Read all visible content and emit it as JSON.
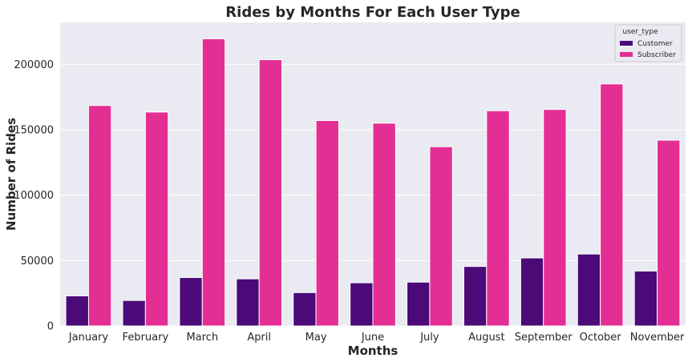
{
  "chart_data": {
    "type": "bar",
    "title": "Rides by Months For Each User Type",
    "xlabel": "Months",
    "ylabel": "Number of Rides",
    "categories": [
      "January",
      "February",
      "March",
      "April",
      "May",
      "June",
      "July",
      "August",
      "September",
      "October",
      "November"
    ],
    "series": [
      {
        "name": "Customer",
        "color": "#4b0a78",
        "values": [
          23000,
          19500,
          37000,
          36000,
          25500,
          33000,
          33500,
          45500,
          52000,
          55000,
          42000
        ]
      },
      {
        "name": "Subscriber",
        "color": "#e32f93",
        "values": [
          168500,
          163500,
          219500,
          203500,
          157000,
          155000,
          137000,
          164500,
          165500,
          185000,
          142000
        ]
      }
    ],
    "ylim": [
      0,
      232000
    ],
    "yticks": [
      0,
      50000,
      100000,
      150000,
      200000
    ],
    "ytick_labels": [
      "0",
      "50000",
      "100000",
      "150000",
      "200000"
    ],
    "grid": true,
    "legend": {
      "title": "user_type",
      "placement": "top-right"
    }
  }
}
